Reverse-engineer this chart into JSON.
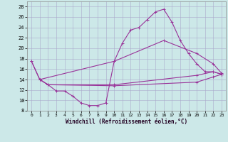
{
  "xlabel": "Windchill (Refroidissement éolien,°C)",
  "background_color": "#cce8e8",
  "grid_color": "#aaaacc",
  "line_color": "#993399",
  "ylim": [
    8,
    29
  ],
  "xlim": [
    -0.5,
    23.5
  ],
  "yticks": [
    8,
    10,
    12,
    14,
    16,
    18,
    20,
    22,
    24,
    26,
    28
  ],
  "xticks": [
    0,
    1,
    2,
    3,
    4,
    5,
    6,
    7,
    8,
    9,
    10,
    11,
    12,
    13,
    14,
    15,
    16,
    17,
    18,
    19,
    20,
    21,
    22,
    23
  ],
  "line1_x": [
    0,
    1,
    2,
    3,
    4,
    5,
    6,
    7,
    8,
    9,
    10,
    11,
    12,
    13,
    14,
    15,
    16,
    17,
    18,
    19,
    20,
    21,
    22,
    23
  ],
  "line1_y": [
    17.5,
    14.0,
    13.0,
    11.8,
    11.8,
    10.8,
    9.5,
    9.0,
    9.0,
    9.5,
    17.5,
    21.0,
    23.5,
    24.0,
    25.5,
    27.0,
    27.5,
    25.0,
    21.5,
    19.0,
    17.0,
    15.5,
    15.5,
    15.0
  ],
  "line2_x": [
    0,
    1,
    10,
    16,
    20,
    22,
    23
  ],
  "line2_y": [
    17.5,
    14.0,
    17.5,
    21.5,
    19.0,
    17.0,
    15.2
  ],
  "line3_x": [
    1,
    2,
    10,
    20,
    22,
    23
  ],
  "line3_y": [
    14.0,
    13.0,
    13.0,
    14.8,
    15.5,
    15.0
  ],
  "line4_x": [
    1,
    2,
    10,
    20,
    22,
    23
  ],
  "line4_y": [
    14.0,
    13.0,
    12.8,
    13.5,
    14.5,
    15.0
  ]
}
